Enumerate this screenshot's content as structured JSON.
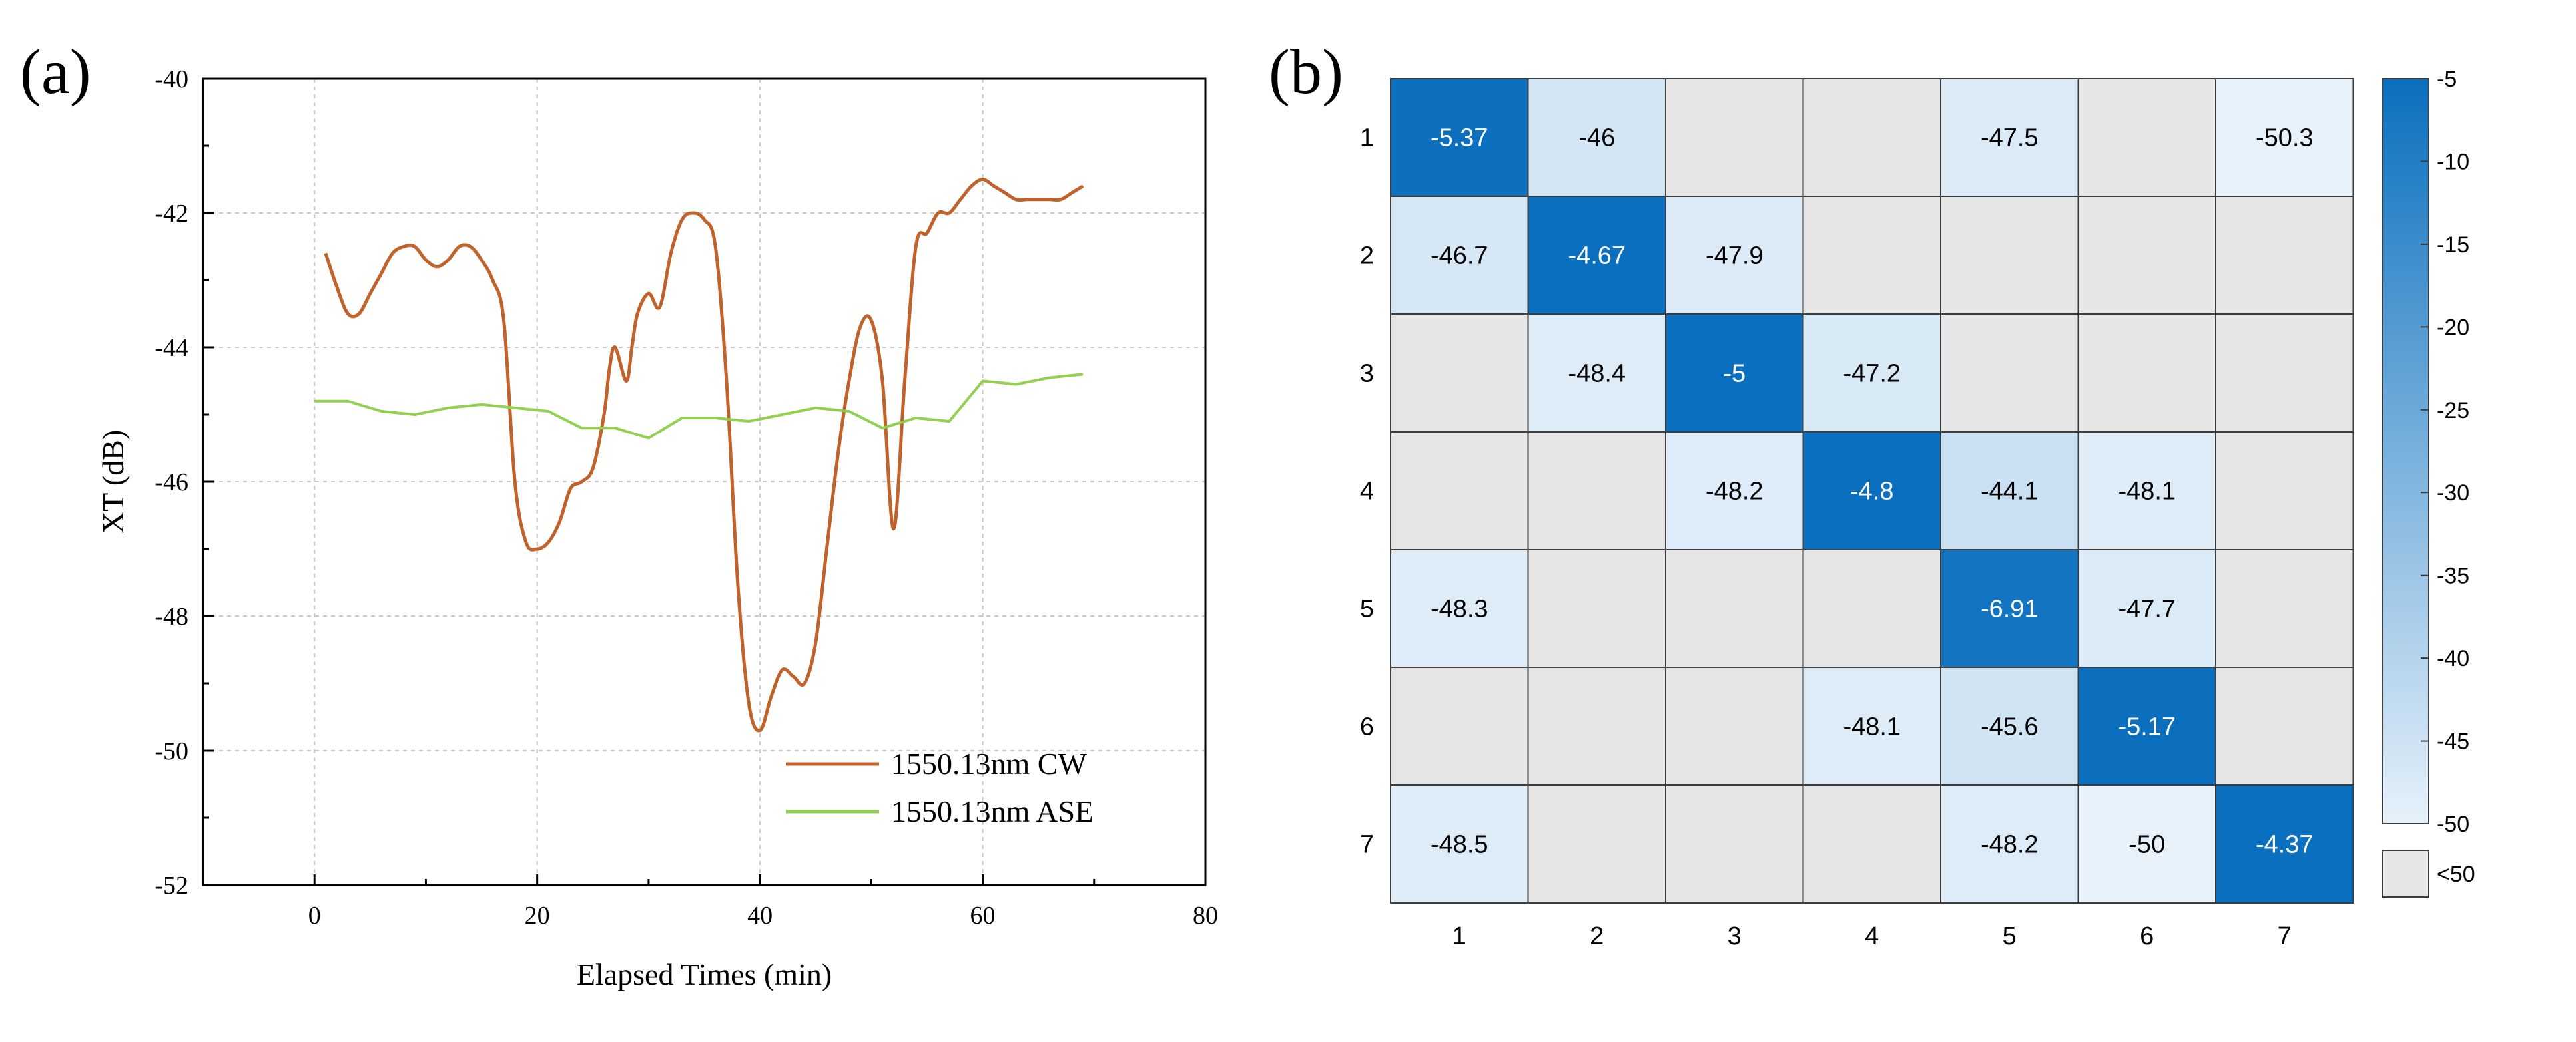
{
  "panel_a": {
    "letter": "(a)",
    "chart_data": {
      "type": "line",
      "xlabel": "Elapsed Times (min)",
      "ylabel": "XT (dB)",
      "xlim": [
        -10,
        80
      ],
      "ylim": [
        -52,
        -40
      ],
      "xticks": [
        0,
        20,
        40,
        60,
        80
      ],
      "yticks": [
        -52,
        -50,
        -48,
        -46,
        -44,
        -42,
        -40
      ],
      "xtick_labels": [
        "0",
        "20",
        "40",
        "60",
        "80"
      ],
      "ytick_labels": [
        "-52",
        "-50",
        "-48",
        "-46",
        "-44",
        "-42",
        "-40"
      ],
      "grid": true,
      "legend_position": "bottom-right",
      "series": [
        {
          "name": "1550.13nm CW",
          "color": "#c0622a",
          "x": [
            1,
            2,
            3,
            4,
            5,
            6,
            7,
            8,
            9,
            10,
            11,
            12,
            13,
            14,
            15,
            16,
            17,
            18,
            19,
            20,
            21,
            22,
            23,
            24,
            25,
            26,
            26.5,
            27,
            28,
            28.5,
            29,
            30,
            31,
            32,
            33,
            34,
            35,
            36,
            37,
            38,
            39,
            40,
            41,
            42,
            43,
            44,
            45,
            46,
            47,
            48,
            49,
            50,
            51,
            52,
            53,
            54,
            55,
            56,
            57,
            58,
            59,
            60,
            61,
            62,
            63,
            64,
            65,
            66,
            67,
            68,
            69
          ],
          "y": [
            -42.6,
            -43.1,
            -43.5,
            -43.5,
            -43.2,
            -42.9,
            -42.6,
            -42.5,
            -42.5,
            -42.7,
            -42.8,
            -42.7,
            -42.5,
            -42.5,
            -42.7,
            -43.0,
            -43.6,
            -46.0,
            -46.9,
            -47.0,
            -46.9,
            -46.6,
            -46.1,
            -46.0,
            -45.8,
            -45.0,
            -44.3,
            -44.0,
            -44.5,
            -44.0,
            -43.5,
            -43.2,
            -43.4,
            -42.6,
            -42.1,
            -42.0,
            -42.1,
            -42.5,
            -44.5,
            -47.5,
            -49.3,
            -49.7,
            -49.2,
            -48.8,
            -48.9,
            -49.0,
            -48.4,
            -47.0,
            -45.6,
            -44.5,
            -43.7,
            -43.6,
            -44.5,
            -46.7,
            -44.5,
            -42.5,
            -42.3,
            -42.0,
            -42.0,
            -41.8,
            -41.6,
            -41.5,
            -41.6,
            -41.7,
            -41.8,
            -41.8,
            -41.8,
            -41.8,
            -41.8,
            -41.7,
            -41.6
          ]
        },
        {
          "name": "1550.13nm ASE",
          "color": "#92d050",
          "x": [
            0,
            3,
            6,
            9,
            12,
            15,
            18,
            21,
            24,
            27,
            30,
            33,
            36,
            39,
            42,
            45,
            48,
            51,
            54,
            57,
            60,
            63,
            66,
            69
          ],
          "y": [
            -44.8,
            -44.8,
            -44.95,
            -45.0,
            -44.9,
            -44.85,
            -44.9,
            -44.95,
            -45.2,
            -45.2,
            -45.35,
            -45.05,
            -45.05,
            -45.1,
            -45.0,
            -44.9,
            -44.95,
            -45.2,
            -45.05,
            -45.1,
            -44.5,
            -44.55,
            -44.45,
            -44.4
          ]
        }
      ]
    }
  },
  "panel_b": {
    "letter": "(b)",
    "chart_data": {
      "type": "heatmap",
      "x_categories": [
        "1",
        "2",
        "3",
        "4",
        "5",
        "6",
        "7"
      ],
      "y_categories": [
        "1",
        "2",
        "3",
        "4",
        "5",
        "6",
        "7"
      ],
      "values": [
        [
          -5.37,
          -46,
          null,
          null,
          -47.5,
          null,
          -50.3
        ],
        [
          -46.7,
          -4.67,
          -47.9,
          null,
          null,
          null,
          null
        ],
        [
          null,
          -48.4,
          -5,
          -47.2,
          null,
          null,
          null
        ],
        [
          null,
          null,
          -48.2,
          -4.8,
          -44.1,
          -48.1,
          null
        ],
        [
          -48.3,
          null,
          null,
          null,
          -6.91,
          -47.7,
          null
        ],
        [
          null,
          null,
          null,
          -48.1,
          -45.6,
          -5.17,
          null
        ],
        [
          -48.5,
          null,
          null,
          null,
          -48.2,
          -50,
          -4.37
        ]
      ],
      "cell_labels": [
        [
          "-5.37",
          "-46",
          "",
          "",
          "-47.5",
          "",
          "-50.3"
        ],
        [
          "-46.7",
          "-4.67",
          "-47.9",
          "",
          "",
          "",
          ""
        ],
        [
          "",
          "-48.4",
          "-5",
          "-47.2",
          "",
          "",
          ""
        ],
        [
          "",
          "",
          "-48.2",
          "-4.8",
          "-44.1",
          "-48.1",
          ""
        ],
        [
          "-48.3",
          "",
          "",
          "",
          "-6.91",
          "-47.7",
          ""
        ],
        [
          "",
          "",
          "",
          "-48.1",
          "-45.6",
          "-5.17",
          ""
        ],
        [
          "-48.5",
          "",
          "",
          "",
          "-48.2",
          "-50",
          "-4.37"
        ]
      ],
      "colorbar": {
        "range": [
          -50,
          -5
        ],
        "ticks": [
          -5,
          -10,
          -15,
          -20,
          -25,
          -30,
          -35,
          -40,
          -45,
          -50
        ],
        "tick_labels": [
          "-5",
          "-10",
          "-15",
          "-20",
          "-25",
          "-30",
          "-35",
          "-40",
          "-45",
          "-50"
        ],
        "color_high": "#0a6fbe",
        "color_low": "#e6f1fa",
        "below_label": "<50",
        "below_color": "#e6e6e6"
      }
    }
  }
}
